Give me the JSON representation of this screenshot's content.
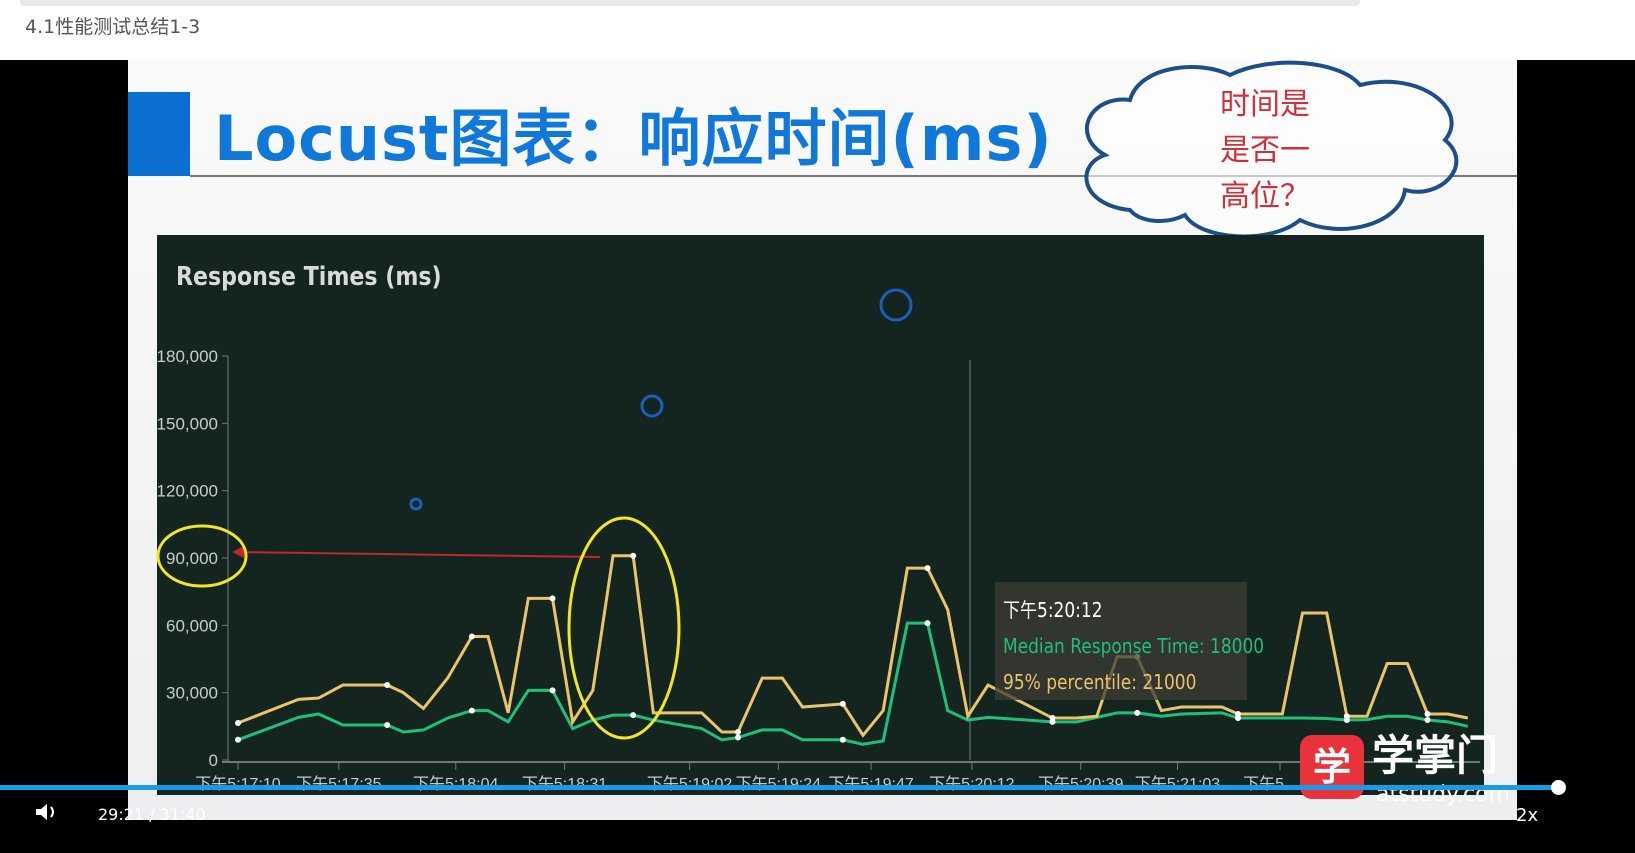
{
  "page": {
    "title": "4.1性能测试总结1-3"
  },
  "slide": {
    "title": "Locust图表：响应时间(ms)",
    "cloud_note": {
      "lines": [
        "时间是",
        "是否一",
        "高位？"
      ]
    },
    "logo": {
      "name": "学掌门",
      "url": "atstudy.com",
      "badge": "学"
    }
  },
  "chart_data": {
    "type": "line",
    "title": "Response Times (ms)",
    "xlabel": "",
    "ylabel": "",
    "ylim": [
      0,
      180000
    ],
    "yticks": [
      "0",
      "30,000",
      "60,000",
      "90,000",
      "120,000",
      "150,000",
      "180,000"
    ],
    "ytick_values": [
      0,
      30000,
      60000,
      90000,
      120000,
      150000,
      180000
    ],
    "xticks": [
      "下午5:17:10",
      "下午5:17:35",
      "下午5:18:04",
      "下午5:18:31",
      "下午5:19:02",
      "下午5:19:24",
      "下午5:19:47",
      "下午5:20:12",
      "下午5:20:39",
      "下午5:21:03",
      "下午5"
    ],
    "x": [
      "5:17:10",
      "5:17:25",
      "5:17:30",
      "5:17:36",
      "5:17:47",
      "5:17:51",
      "5:17:56",
      "5:18:02",
      "5:18:08",
      "5:18:12",
      "5:18:17",
      "5:18:22",
      "5:18:28",
      "5:18:33",
      "5:18:38",
      "5:18:43",
      "5:18:48",
      "5:18:53",
      "5:19:05",
      "5:19:10",
      "5:19:14",
      "5:19:20",
      "5:19:25",
      "5:19:30",
      "5:19:40",
      "5:19:45",
      "5:19:50",
      "5:19:56",
      "5:20:01",
      "5:20:06",
      "5:20:11",
      "5:20:16",
      "5:20:32",
      "5:20:38",
      "5:20:43",
      "5:20:48",
      "5:20:53",
      "5:20:59",
      "5:21:04",
      "5:21:14",
      "5:21:18",
      "5:21:29",
      "5:21:34",
      "5:21:40",
      "5:21:45",
      "5:21:50",
      "5:21:55",
      "5:22:00",
      "5:22:05",
      "5:22:10",
      "5:22:15"
    ],
    "series": [
      {
        "name": "95% percentile",
        "color": "#e9c46a",
        "values": [
          16500,
          27000,
          27600,
          33400,
          33400,
          30000,
          23000,
          36500,
          55000,
          55000,
          21000,
          72000,
          72000,
          17000,
          31000,
          91000,
          91000,
          21000,
          21000,
          12500,
          12500,
          36500,
          36500,
          23600,
          25000,
          11000,
          22000,
          85500,
          85500,
          67000,
          19500,
          33400,
          18700,
          18700,
          19500,
          46000,
          46000,
          22000,
          23600,
          23600,
          20500,
          20500,
          65500,
          65500,
          19500,
          19500,
          43000,
          43000,
          20500,
          20500,
          18700
        ]
      },
      {
        "name": "Median Response Time",
        "color": "#1fbf7a",
        "values": [
          9000,
          19000,
          20500,
          15600,
          15600,
          12500,
          13400,
          18700,
          22000,
          22000,
          17000,
          31000,
          31000,
          14000,
          17800,
          20000,
          20000,
          17800,
          14000,
          9000,
          10000,
          13400,
          13400,
          9000,
          9000,
          7000,
          8500,
          61000,
          61000,
          22000,
          17800,
          19000,
          17000,
          17000,
          19000,
          21000,
          21000,
          19500,
          20500,
          21000,
          18700,
          18700,
          18700,
          18500,
          17800,
          18000,
          19500,
          19500,
          17800,
          17000,
          15000
        ]
      }
    ],
    "tooltip": {
      "time": "下午5:20:12",
      "median": "Median Response Time: 18000",
      "p95": "95% percentile: 21000"
    },
    "annotations": {
      "highlight_value": 90000,
      "highlight_peak_time": "5:18:45",
      "arrow_color": "#c0282a",
      "circle_color": "#f0e628"
    },
    "grid": false,
    "legend": "none"
  },
  "player": {
    "current_time": "29:21",
    "duration": "31:40",
    "time_display": "29:21 / 31:40",
    "progress": 0.927,
    "speed": "2x",
    "progress_color": "#1a9be8"
  }
}
